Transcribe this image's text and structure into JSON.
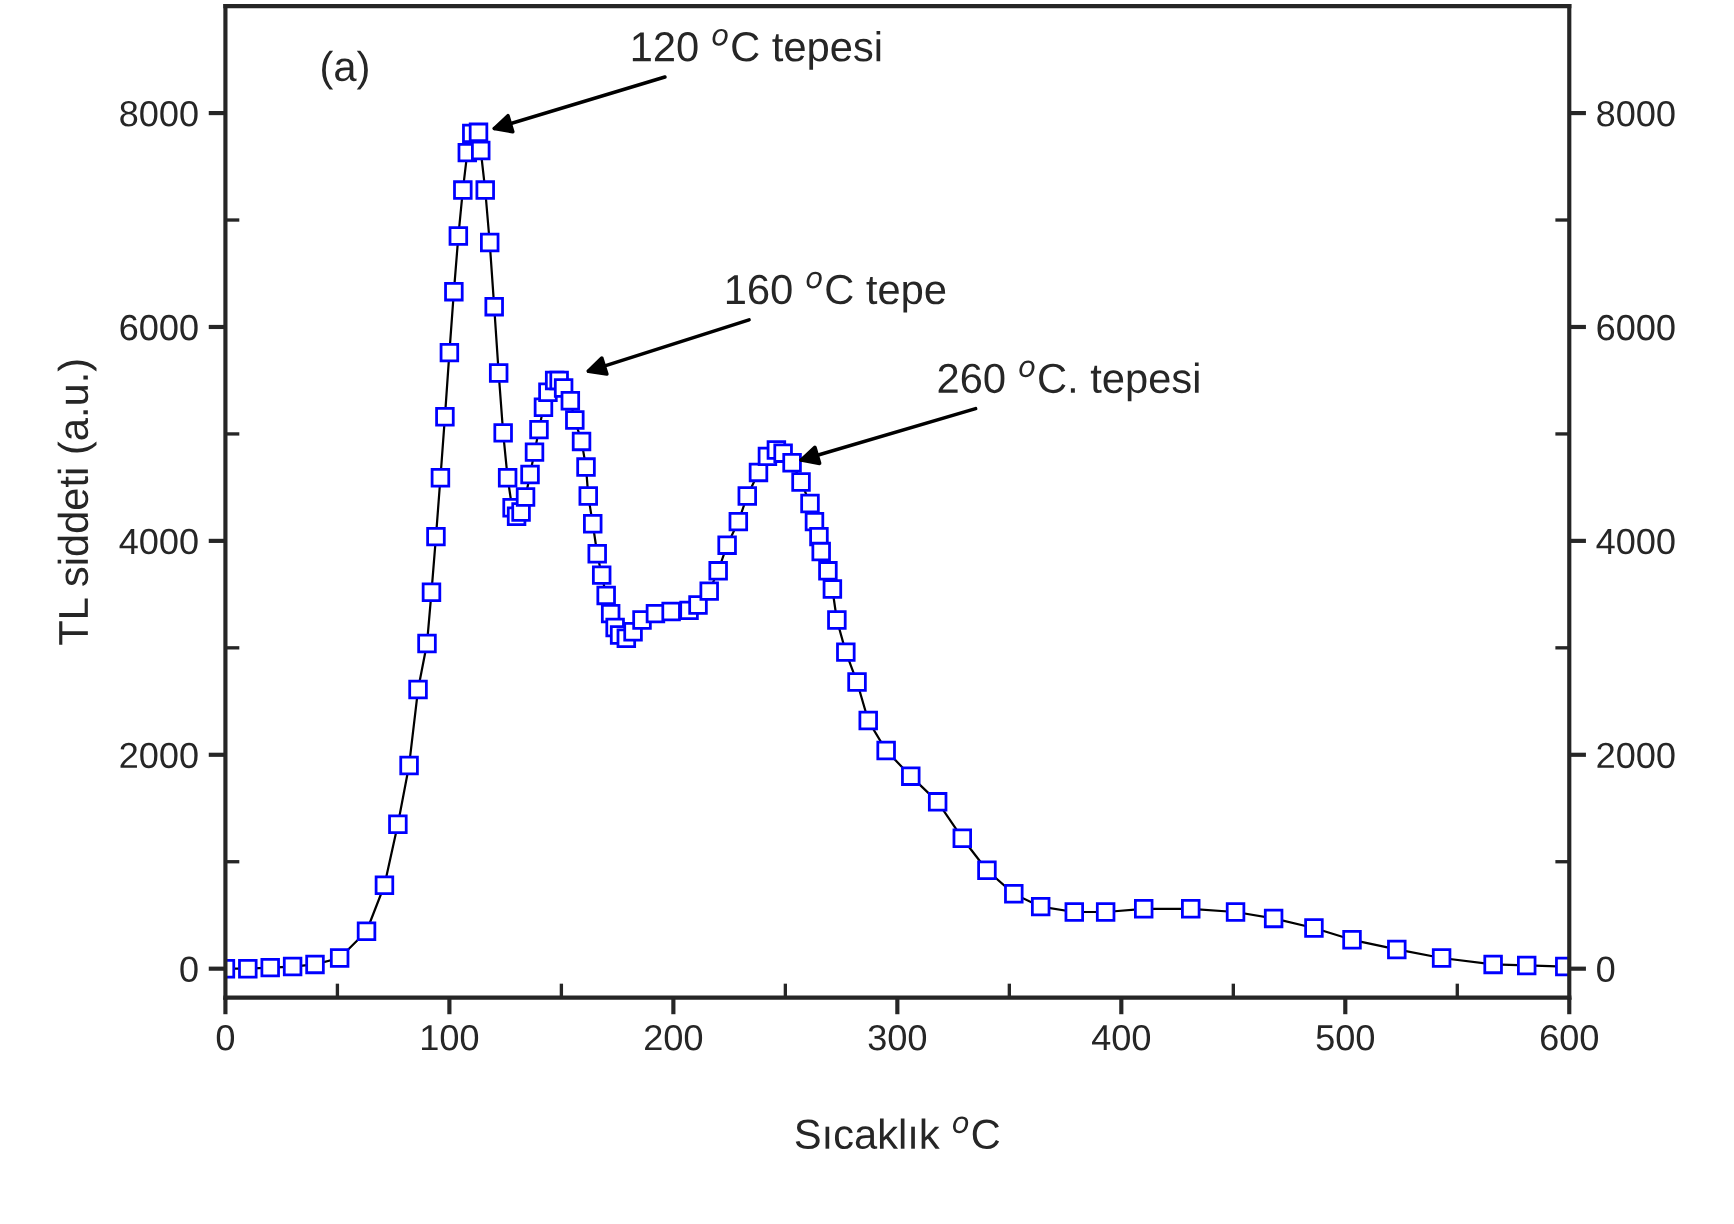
{
  "chart_data": {
    "type": "line",
    "xlabel": "Sıcaklık $^{o}$C",
    "ylabel": "TL siddeti (a.u.)",
    "xlim": [
      0,
      600
    ],
    "xticks": [
      0,
      100,
      200,
      300,
      400,
      500,
      600
    ],
    "ylim": [
      -270,
      9000
    ],
    "yticks": [
      0,
      2000,
      4000,
      6000,
      8000
    ],
    "y2lim": [
      -270,
      9000
    ],
    "y2ticks": [
      0,
      2000,
      4000,
      6000,
      8000
    ],
    "marker": "square",
    "grid": false,
    "legend": false,
    "annotations": [
      "(a)",
      {
        "text": "120 $^{o}$C tepesi",
        "x": 116,
        "y": 7830
      },
      {
        "text": "160 $^{o}$C tepe",
        "x": 158,
        "y": 5560
      },
      {
        "text": "260 $^{o}$C. tepesi",
        "x": 253,
        "y": 4730
      }
    ],
    "series": [
      {
        "color": "#0000ff",
        "x": [
          0,
          10,
          20,
          30,
          40,
          51,
          63,
          71,
          77,
          82,
          86,
          90,
          92,
          94,
          96,
          98,
          100,
          102,
          104,
          106,
          108,
          110,
          113,
          114,
          116,
          118,
          120,
          122,
          124,
          126,
          128,
          130,
          132,
          134,
          136,
          138,
          140,
          142,
          144,
          147,
          149,
          151,
          154,
          156,
          159,
          161,
          162,
          164,
          166,
          168,
          170,
          172,
          174,
          176,
          179,
          182,
          186,
          192,
          199,
          207,
          211,
          216,
          220,
          224,
          229,
          233,
          238,
          242,
          246,
          249,
          253,
          257,
          261,
          263,
          265,
          266,
          269,
          271,
          273,
          277,
          282,
          287,
          295,
          306,
          318,
          329,
          340,
          352,
          364,
          379,
          393,
          410,
          431,
          451,
          468,
          486,
          503,
          523,
          543,
          566,
          581,
          598
        ],
        "values": [
          0,
          0,
          10,
          20,
          40,
          100,
          350,
          780,
          1350,
          1900,
          2610,
          3040,
          3520,
          4040,
          4590,
          5160,
          5760,
          6330,
          6850,
          7280,
          7630,
          7810,
          7820,
          7650,
          7280,
          6790,
          6190,
          5570,
          5010,
          4590,
          4310,
          4230,
          4270,
          4410,
          4620,
          4830,
          5040,
          5250,
          5390,
          5500,
          5500,
          5430,
          5310,
          5130,
          4930,
          4690,
          4420,
          4160,
          3880,
          3680,
          3490,
          3320,
          3190,
          3120,
          3090,
          3150,
          3260,
          3320,
          3340,
          3350,
          3400,
          3530,
          3720,
          3960,
          4180,
          4420,
          4640,
          4790,
          4850,
          4820,
          4730,
          4550,
          4350,
          4180,
          4040,
          3900,
          3720,
          3550,
          3260,
          2960,
          2680,
          2320,
          2040,
          1800,
          1560,
          1220,
          920,
          700,
          580,
          530,
          530,
          560,
          560,
          530,
          470,
          380,
          270,
          180,
          100,
          40,
          30,
          20
        ]
      }
    ]
  }
}
